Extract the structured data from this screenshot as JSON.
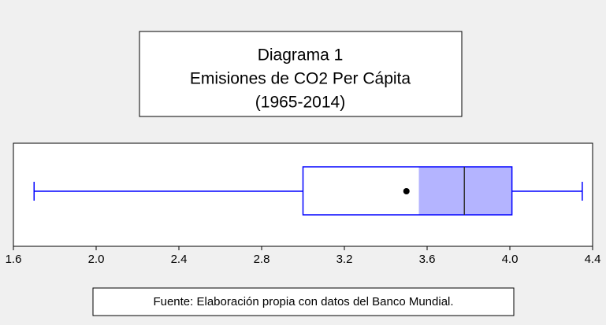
{
  "chart_data": {
    "type": "boxplot",
    "title": [
      "Diagrama 1",
      "Emisiones de CO2 Per Cápita",
      "(1965-2014)"
    ],
    "footnote": "Fuente: Elaboración propia con datos del Banco Mundial.",
    "series": [
      {
        "whisker_low": 1.7,
        "q1": 3.0,
        "ci_low": 3.56,
        "median": 3.78,
        "ci_high": 4.01,
        "q3": 4.01,
        "whisker_high": 4.35,
        "mean": 3.5,
        "color": "#0000ff",
        "ci_color": "#b4b4ff"
      }
    ],
    "xlim": [
      1.6,
      4.4
    ],
    "xticks": [
      1.6,
      {
        "value": 2.0,
        "label": "2.0"
      },
      2.4,
      2.8,
      3.2,
      3.6,
      {
        "value": 4.0,
        "label": "4.0"
      },
      4.4
    ]
  }
}
